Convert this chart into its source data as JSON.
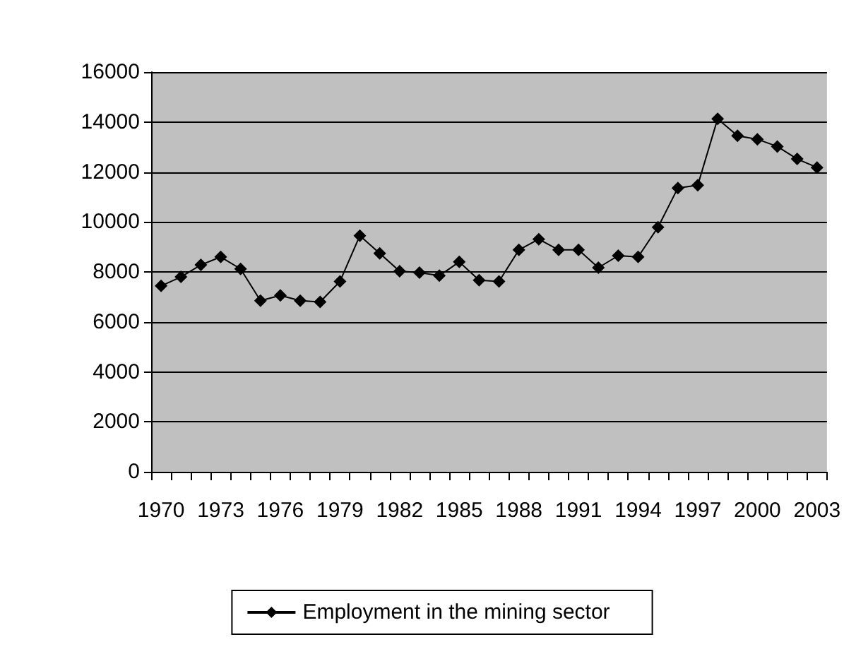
{
  "chart_data": {
    "type": "line",
    "categories": [
      "1970",
      null,
      null,
      "1973",
      null,
      null,
      "1976",
      null,
      null,
      "1979",
      null,
      null,
      "1982",
      null,
      null,
      "1985",
      null,
      null,
      "1988",
      null,
      null,
      "1991",
      null,
      null,
      "1994",
      null,
      null,
      "1997",
      null,
      null,
      "2000",
      null,
      null,
      "2003"
    ],
    "series": [
      {
        "name": "Employment in the mining sector",
        "color": "#000000",
        "values": [
          7440,
          7800,
          8280,
          8600,
          8120,
          6850,
          7060,
          6850,
          6800,
          7620,
          9450,
          8740,
          8030,
          7970,
          7850,
          8400,
          7670,
          7620,
          8880,
          9310,
          8880,
          8880,
          8170,
          8650,
          8600,
          9790,
          11360,
          11470,
          14130,
          13450,
          13310,
          13020,
          12520,
          12180
        ]
      }
    ],
    "ylim": [
      0,
      16000
    ],
    "yticks": [
      0,
      2000,
      4000,
      6000,
      8000,
      10000,
      12000,
      14000,
      16000
    ],
    "grid": "y",
    "legend": "bottom",
    "marker": "diamond",
    "line_style": "solid"
  }
}
